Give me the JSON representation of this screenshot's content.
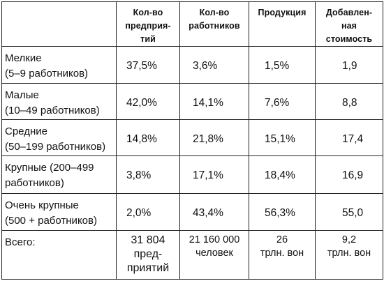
{
  "headers": {
    "enterprises": "Кол-во предприя-тий",
    "workers": "Кол-во работников",
    "production": "Продукция",
    "value_added": "Добавлен-ная стоимость"
  },
  "rows": [
    {
      "label_line1": "Мелкие",
      "label_line2": "(5–9 работников)",
      "enterprises": "37,5%",
      "workers": "3,6%",
      "production": "1,5%",
      "value_added": "1,9"
    },
    {
      "label_line1": "Малые",
      "label_line2": "(10–49 работников)",
      "enterprises": "42,0%",
      "workers": "14,1%",
      "production": "7,6%",
      "value_added": "8,8"
    },
    {
      "label_line1": "Средние",
      "label_line2": "(50–199 работников)",
      "enterprises": "14,8%",
      "workers": "21,8%",
      "production": "15,1%",
      "value_added": "17,4"
    },
    {
      "label_line1": "Крупные (200–499",
      "label_line2": "работников)",
      "enterprises": "3,8%",
      "workers": "17,1%",
      "production": "18,4%",
      "value_added": "16,9"
    },
    {
      "label_line1": "Очень крупные",
      "label_line2": "(500 + работников)",
      "enterprises": "2,0%",
      "workers": "43,4%",
      "production": "56,3%",
      "value_added": "55,0"
    }
  ],
  "total": {
    "label": "Всего:",
    "enterprises_line1": "31 804",
    "enterprises_line2": "пред-",
    "enterprises_line3": "приятий",
    "workers_line1": "21 160 000",
    "workers_line2": "человек",
    "production_line1": "26",
    "production_line2": "трлн. вон",
    "value_added_line1": "9,2",
    "value_added_line2": "трлн. вон"
  }
}
